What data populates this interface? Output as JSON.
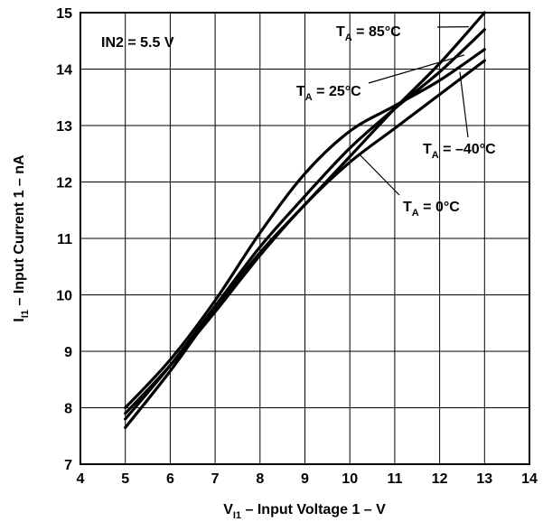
{
  "chart_data": {
    "type": "line",
    "title": "",
    "xlabel": {
      "main": "V",
      "sub": "I1",
      "rest": " – Input Voltage 1 – V"
    },
    "ylabel": {
      "main": "I",
      "sub": "I1",
      "rest": " – Input Current 1 – nA"
    },
    "xlim": [
      4,
      14
    ],
    "ylim": [
      7,
      15
    ],
    "xticks": [
      "4",
      "5",
      "6",
      "7",
      "8",
      "9",
      "10",
      "11",
      "12",
      "13",
      "14"
    ],
    "yticks": [
      "7",
      "8",
      "9",
      "10",
      "11",
      "12",
      "13",
      "14",
      "15"
    ],
    "grid": true,
    "condition_label": "IN2 = 5.5 V",
    "series": [
      {
        "name": "TA = 85°C",
        "x": [
          5,
          6,
          7,
          8,
          9,
          10,
          11,
          12,
          13
        ],
        "y": [
          7.65,
          8.65,
          9.75,
          10.75,
          11.6,
          12.45,
          13.3,
          14.1,
          15.0
        ]
      },
      {
        "name": "TA = 25°C",
        "x": [
          5,
          6,
          7,
          8,
          9,
          10,
          11,
          12,
          13
        ],
        "y": [
          7.8,
          8.75,
          9.8,
          10.85,
          11.75,
          12.6,
          13.3,
          13.95,
          14.7
        ]
      },
      {
        "name": "TA = –40°C",
        "x": [
          5,
          6,
          7,
          8,
          9,
          10,
          11,
          12,
          13
        ],
        "y": [
          8.0,
          8.85,
          9.9,
          11.1,
          12.15,
          12.9,
          13.35,
          13.8,
          14.35
        ]
      },
      {
        "name": "TA = 0°C",
        "x": [
          5,
          6,
          7,
          8,
          9,
          10,
          11,
          12,
          13
        ],
        "y": [
          7.9,
          8.75,
          9.7,
          10.7,
          11.6,
          12.35,
          12.95,
          13.55,
          14.15
        ]
      }
    ],
    "annotations": [
      {
        "text_main": "T",
        "text_sub": "A",
        "text_rest": " = 85°C",
        "series": "TA = 85°C"
      },
      {
        "text_main": "T",
        "text_sub": "A",
        "text_rest": " = 25°C",
        "series": "TA = 25°C"
      },
      {
        "text_main": "T",
        "text_sub": "A",
        "text_rest": " = –40°C",
        "series": "TA = –40°C"
      },
      {
        "text_main": "T",
        "text_sub": "A",
        "text_rest": " = 0°C",
        "series": "TA = 0°C"
      }
    ]
  }
}
